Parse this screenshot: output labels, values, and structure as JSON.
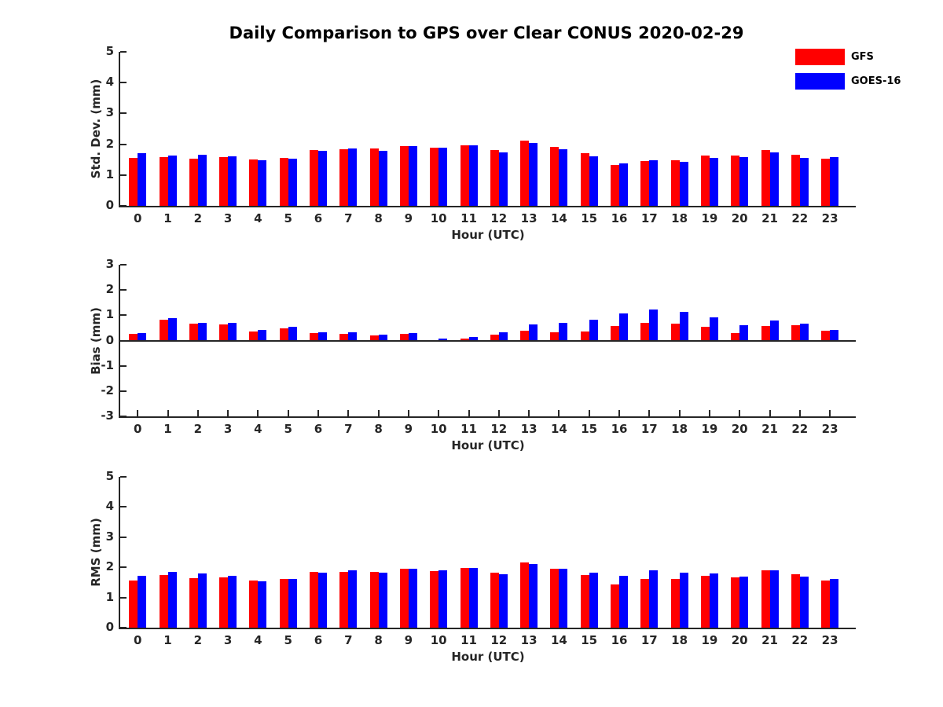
{
  "title": "Daily Comparison to GPS over Clear CONUS 2020-02-29",
  "legend": {
    "items": [
      {
        "label": "GFS",
        "color": "#ff0000"
      },
      {
        "label": "GOES-16",
        "color": "#0000ff"
      }
    ]
  },
  "colors": {
    "gfs": "#ff0000",
    "goes16": "#0000ff",
    "axis": "#262626"
  },
  "chart_data": [
    {
      "type": "bar",
      "title": "Daily Comparison to GPS over Clear CONUS 2020-02-29",
      "ylabel": "Std. Dev. (mm)",
      "xlabel": "Hour (UTC)",
      "categories": [
        "0",
        "1",
        "2",
        "3",
        "4",
        "5",
        "6",
        "7",
        "8",
        "9",
        "10",
        "11",
        "12",
        "13",
        "14",
        "15",
        "16",
        "17",
        "18",
        "19",
        "20",
        "21",
        "22",
        "23"
      ],
      "ylim": [
        0,
        5
      ],
      "yticks": [
        0,
        1,
        2,
        3,
        4,
        5
      ],
      "grid": false,
      "legend_position": "upper-right-outside",
      "series": [
        {
          "name": "GFS",
          "color": "#ff0000",
          "values": [
            1.55,
            1.58,
            1.52,
            1.57,
            1.51,
            1.56,
            1.8,
            1.83,
            1.85,
            1.93,
            1.9,
            1.97,
            1.8,
            2.11,
            1.91,
            1.72,
            1.33,
            1.45,
            1.48,
            1.64,
            1.63,
            1.8,
            1.65,
            1.53
          ]
        },
        {
          "name": "GOES-16",
          "color": "#0000ff",
          "values": [
            1.7,
            1.64,
            1.66,
            1.6,
            1.49,
            1.53,
            1.79,
            1.85,
            1.79,
            1.95,
            1.89,
            1.97,
            1.73,
            2.03,
            1.84,
            1.6,
            1.37,
            1.49,
            1.44,
            1.56,
            1.58,
            1.74,
            1.56,
            1.58
          ]
        }
      ]
    },
    {
      "type": "bar",
      "title": "",
      "ylabel": "Bias (mm)",
      "xlabel": "Hour (UTC)",
      "categories": [
        "0",
        "1",
        "2",
        "3",
        "4",
        "5",
        "6",
        "7",
        "8",
        "9",
        "10",
        "11",
        "12",
        "13",
        "14",
        "15",
        "16",
        "17",
        "18",
        "19",
        "20",
        "21",
        "22",
        "23"
      ],
      "ylim": [
        -3,
        3
      ],
      "yticks": [
        -3,
        -2,
        -1,
        0,
        1,
        2,
        3
      ],
      "grid": false,
      "zero_line": true,
      "series": [
        {
          "name": "GFS",
          "color": "#ff0000",
          "values": [
            0.26,
            0.81,
            0.67,
            0.64,
            0.35,
            0.48,
            0.3,
            0.26,
            0.21,
            0.26,
            0.03,
            0.07,
            0.23,
            0.38,
            0.33,
            0.36,
            0.58,
            0.71,
            0.68,
            0.55,
            0.28,
            0.58,
            0.6,
            0.4
          ]
        },
        {
          "name": "GOES-16",
          "color": "#0000ff",
          "values": [
            0.3,
            0.9,
            0.7,
            0.7,
            0.42,
            0.54,
            0.33,
            0.33,
            0.24,
            0.28,
            0.07,
            0.15,
            0.33,
            0.65,
            0.7,
            0.83,
            1.08,
            1.22,
            1.13,
            0.92,
            0.62,
            0.79,
            0.66,
            0.43
          ]
        }
      ]
    },
    {
      "type": "bar",
      "title": "",
      "ylabel": "RMS (mm)",
      "xlabel": "Hour (UTC)",
      "categories": [
        "0",
        "1",
        "2",
        "3",
        "4",
        "5",
        "6",
        "7",
        "8",
        "9",
        "10",
        "11",
        "12",
        "13",
        "14",
        "15",
        "16",
        "17",
        "18",
        "19",
        "20",
        "21",
        "22",
        "23"
      ],
      "ylim": [
        0,
        5
      ],
      "yticks": [
        0,
        1,
        2,
        3,
        4,
        5
      ],
      "grid": false,
      "series": [
        {
          "name": "GFS",
          "color": "#ff0000",
          "values": [
            1.56,
            1.75,
            1.64,
            1.67,
            1.57,
            1.62,
            1.84,
            1.85,
            1.84,
            1.95,
            1.88,
            1.98,
            1.83,
            2.16,
            1.96,
            1.75,
            1.44,
            1.61,
            1.62,
            1.73,
            1.66,
            1.9,
            1.76,
            1.55
          ]
        },
        {
          "name": "GOES-16",
          "color": "#0000ff",
          "values": [
            1.71,
            1.84,
            1.79,
            1.72,
            1.53,
            1.61,
            1.83,
            1.89,
            1.82,
            1.95,
            1.91,
            1.99,
            1.77,
            2.12,
            1.96,
            1.81,
            1.71,
            1.9,
            1.82,
            1.79,
            1.7,
            1.9,
            1.69,
            1.61
          ]
        }
      ]
    }
  ]
}
